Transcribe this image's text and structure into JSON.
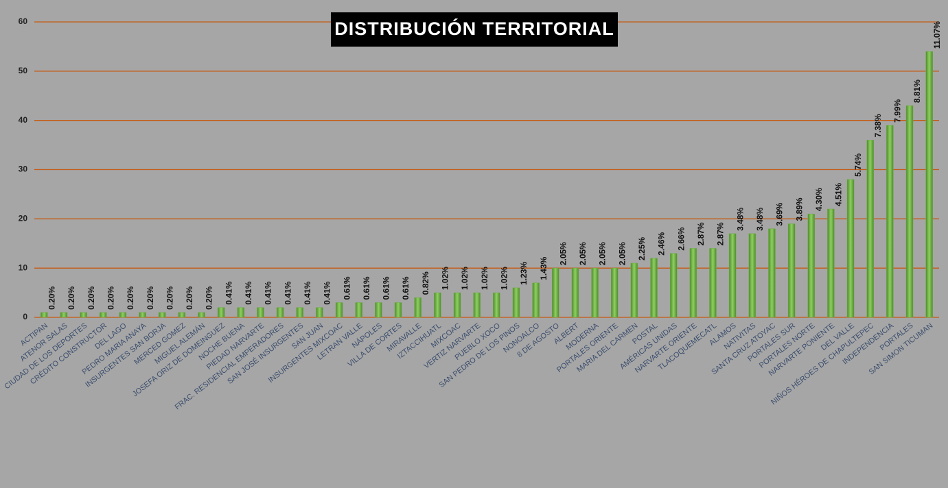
{
  "chart_data": {
    "type": "bar",
    "title": "DISTRIBUCIÓN TERRITORIAL",
    "categories": [
      "ACTIPAN",
      "ATENOR SALAS",
      "CIUDAD DE LOS DEPORTES",
      "CRÉDITO CONSTRUCTOR",
      "DEL LAGO",
      "PEDRO MARIA ANAYA",
      "INSURGENTES SAN BORJA",
      "MERCED GOMEZ",
      "MIGUEL ALEMÁN",
      "JOSEFA ORIZ DE DOMEINGUEZ",
      "NOCHE BUENA",
      "PIEDAD NARVARTE",
      "FRAC. RESIDENCIAL EMPERADORES",
      "SAN JOSÉ INSURGENTES",
      "SAN JUAN",
      "INSURGENTES MIXCOAC",
      "LETRAN VALLE",
      "NÁPOLES",
      "VILLA DE CORTES",
      "MIRAVALLE",
      "IZTACCIHUATL",
      "MIXCOAC",
      "VERTIZ NARVARTE",
      "PUEBLO XOCO",
      "SAN PEDRO DE LOS PINOS",
      "NONOALCO",
      "8 DE AGOSTO",
      "ALBERT",
      "MODERNA",
      "PORTALES ORIENTE",
      "MARIA DEL CARMEN",
      "POSTAL",
      "AMÉRICAS UNIDAS",
      "NARVARTE ORIENTE",
      "TLACOQUEMECATL",
      "ALAMOS",
      "NATIVITAS",
      "SANTA CRUZ ATOYAC",
      "PORTALES SUR",
      "PORTALES NORTE",
      "NARVARTE PONIENTE",
      "DEL VALLE",
      "NIÑOS HÉROES DE CHAPULTEPEC",
      "INDEPENDENCIA",
      "PORTALES",
      "SAN SIMON TICUMAN"
    ],
    "values": [
      1,
      1,
      1,
      1,
      1,
      1,
      1,
      1,
      1,
      2,
      2,
      2,
      2,
      2,
      2,
      3,
      3,
      3,
      3,
      4,
      5,
      5,
      5,
      5,
      6,
      7,
      10,
      10,
      10,
      10,
      11,
      12,
      13,
      14,
      14,
      17,
      17,
      18,
      19,
      21,
      22,
      28,
      36,
      39,
      43,
      54
    ],
    "value_labels": [
      "0.20%",
      "0.20%",
      "0.20%",
      "0.20%",
      "0.20%",
      "0.20%",
      "0.20%",
      "0.20%",
      "0.20%",
      "0.41%",
      "0.41%",
      "0.41%",
      "0.41%",
      "0.41%",
      "0.41%",
      "0.61%",
      "0.61%",
      "0.61%",
      "0.61%",
      "0.82%",
      "1.02%",
      "1.02%",
      "1.02%",
      "1.02%",
      "1.23%",
      "1.43%",
      "2.05%",
      "2.05%",
      "2.05%",
      "2.05%",
      "2.25%",
      "2.46%",
      "2.66%",
      "2.87%",
      "2.87%",
      "3.48%",
      "3.48%",
      "3.69%",
      "3.89%",
      "4.30%",
      "4.51%",
      "5.74%",
      "7.38%",
      "7.99%",
      "8.81%",
      "11.07%"
    ],
    "color": "#70ad47",
    "grid_color": "#c55a11",
    "ylim": [
      0,
      60
    ],
    "yticks": [
      0,
      10,
      20,
      30,
      40,
      50,
      60
    ],
    "grid": true
  }
}
